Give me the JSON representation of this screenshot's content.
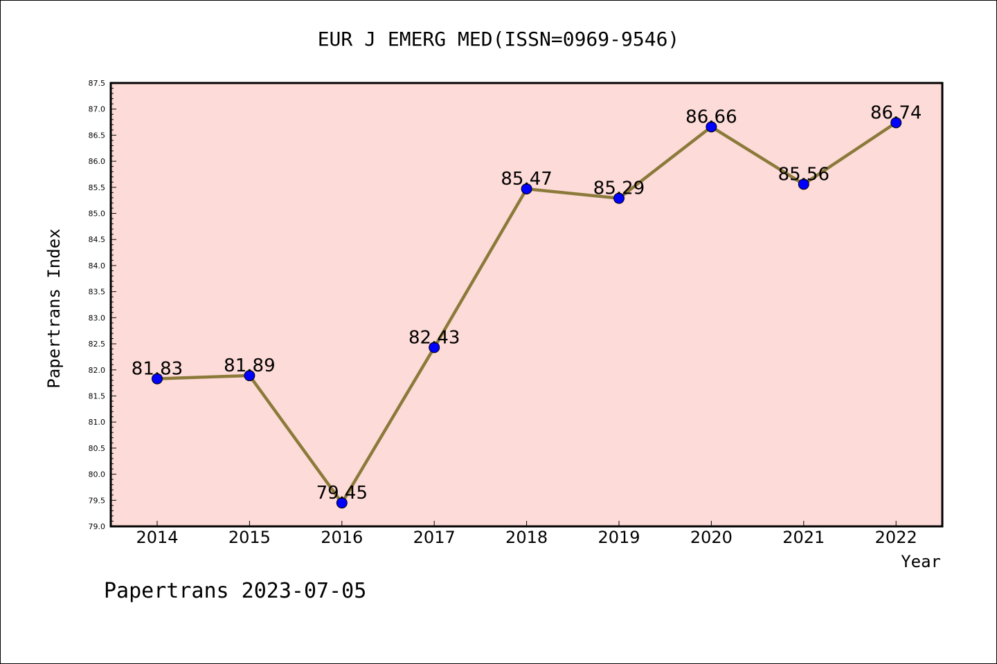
{
  "chart_data": {
    "type": "line",
    "title": "EUR J EMERG MED(ISSN=0969-9546)",
    "xlabel": "Year",
    "ylabel": "Papertrans Index",
    "ylim": [
      79.0,
      87.5
    ],
    "y_tick_step": 0.5,
    "grid": false,
    "legend": "none",
    "categories": [
      "2014",
      "2015",
      "2016",
      "2017",
      "2018",
      "2019",
      "2020",
      "2021",
      "2022"
    ],
    "series": [
      {
        "values": [
          81.83,
          81.89,
          79.45,
          82.43,
          85.47,
          85.29,
          86.66,
          85.56,
          86.74
        ],
        "labels": [
          "81.83",
          "81.89",
          "79.45",
          "82.43",
          "85.47",
          "85.29",
          "86.66",
          "85.56",
          "86.74"
        ]
      }
    ],
    "colors": {
      "plot_background": "#fddbd8",
      "line": "#8b7a3a",
      "marker": "#0000ff"
    }
  },
  "footer": "Papertrans 2023-07-05"
}
